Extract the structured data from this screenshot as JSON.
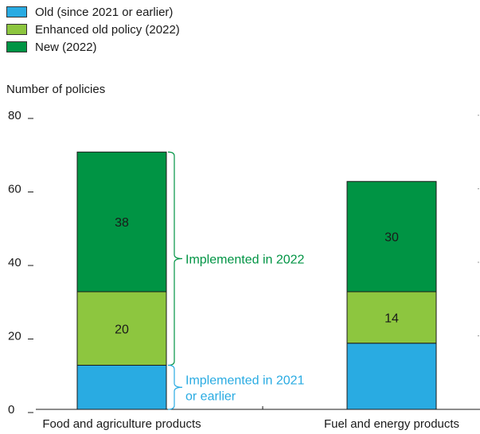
{
  "chart_data": {
    "type": "bar",
    "stacked": true,
    "categories": [
      "Food and agriculture products",
      "Fuel and energy products"
    ],
    "series": [
      {
        "name": "Old (since 2021 or earlier)",
        "values": [
          12,
          18
        ],
        "color": "#29abe2"
      },
      {
        "name": "Enhanced old policy (2022)",
        "values": [
          20,
          14
        ],
        "color": "#8dc63f"
      },
      {
        "name": "New (2022)",
        "values": [
          38,
          30
        ],
        "color": "#009444"
      }
    ],
    "data_labels": [
      [
        "",
        "20",
        "38"
      ],
      [
        "",
        "14",
        "30"
      ]
    ],
    "ylabel": "Number of policies",
    "ylim": [
      0,
      80
    ],
    "yticks": [
      0,
      20,
      40,
      60,
      80
    ],
    "legend_position": "top-left",
    "grid": false,
    "annotations": [
      {
        "text_lines": [
          "Implemented in 2022"
        ],
        "color": "#009444",
        "category_index": 0,
        "from_value": 12,
        "to_value": 70
      },
      {
        "text_lines": [
          "Implemented in 2021",
          "or earlier"
        ],
        "color": "#29abe2",
        "category_index": 0,
        "from_value": 0,
        "to_value": 12
      }
    ]
  }
}
